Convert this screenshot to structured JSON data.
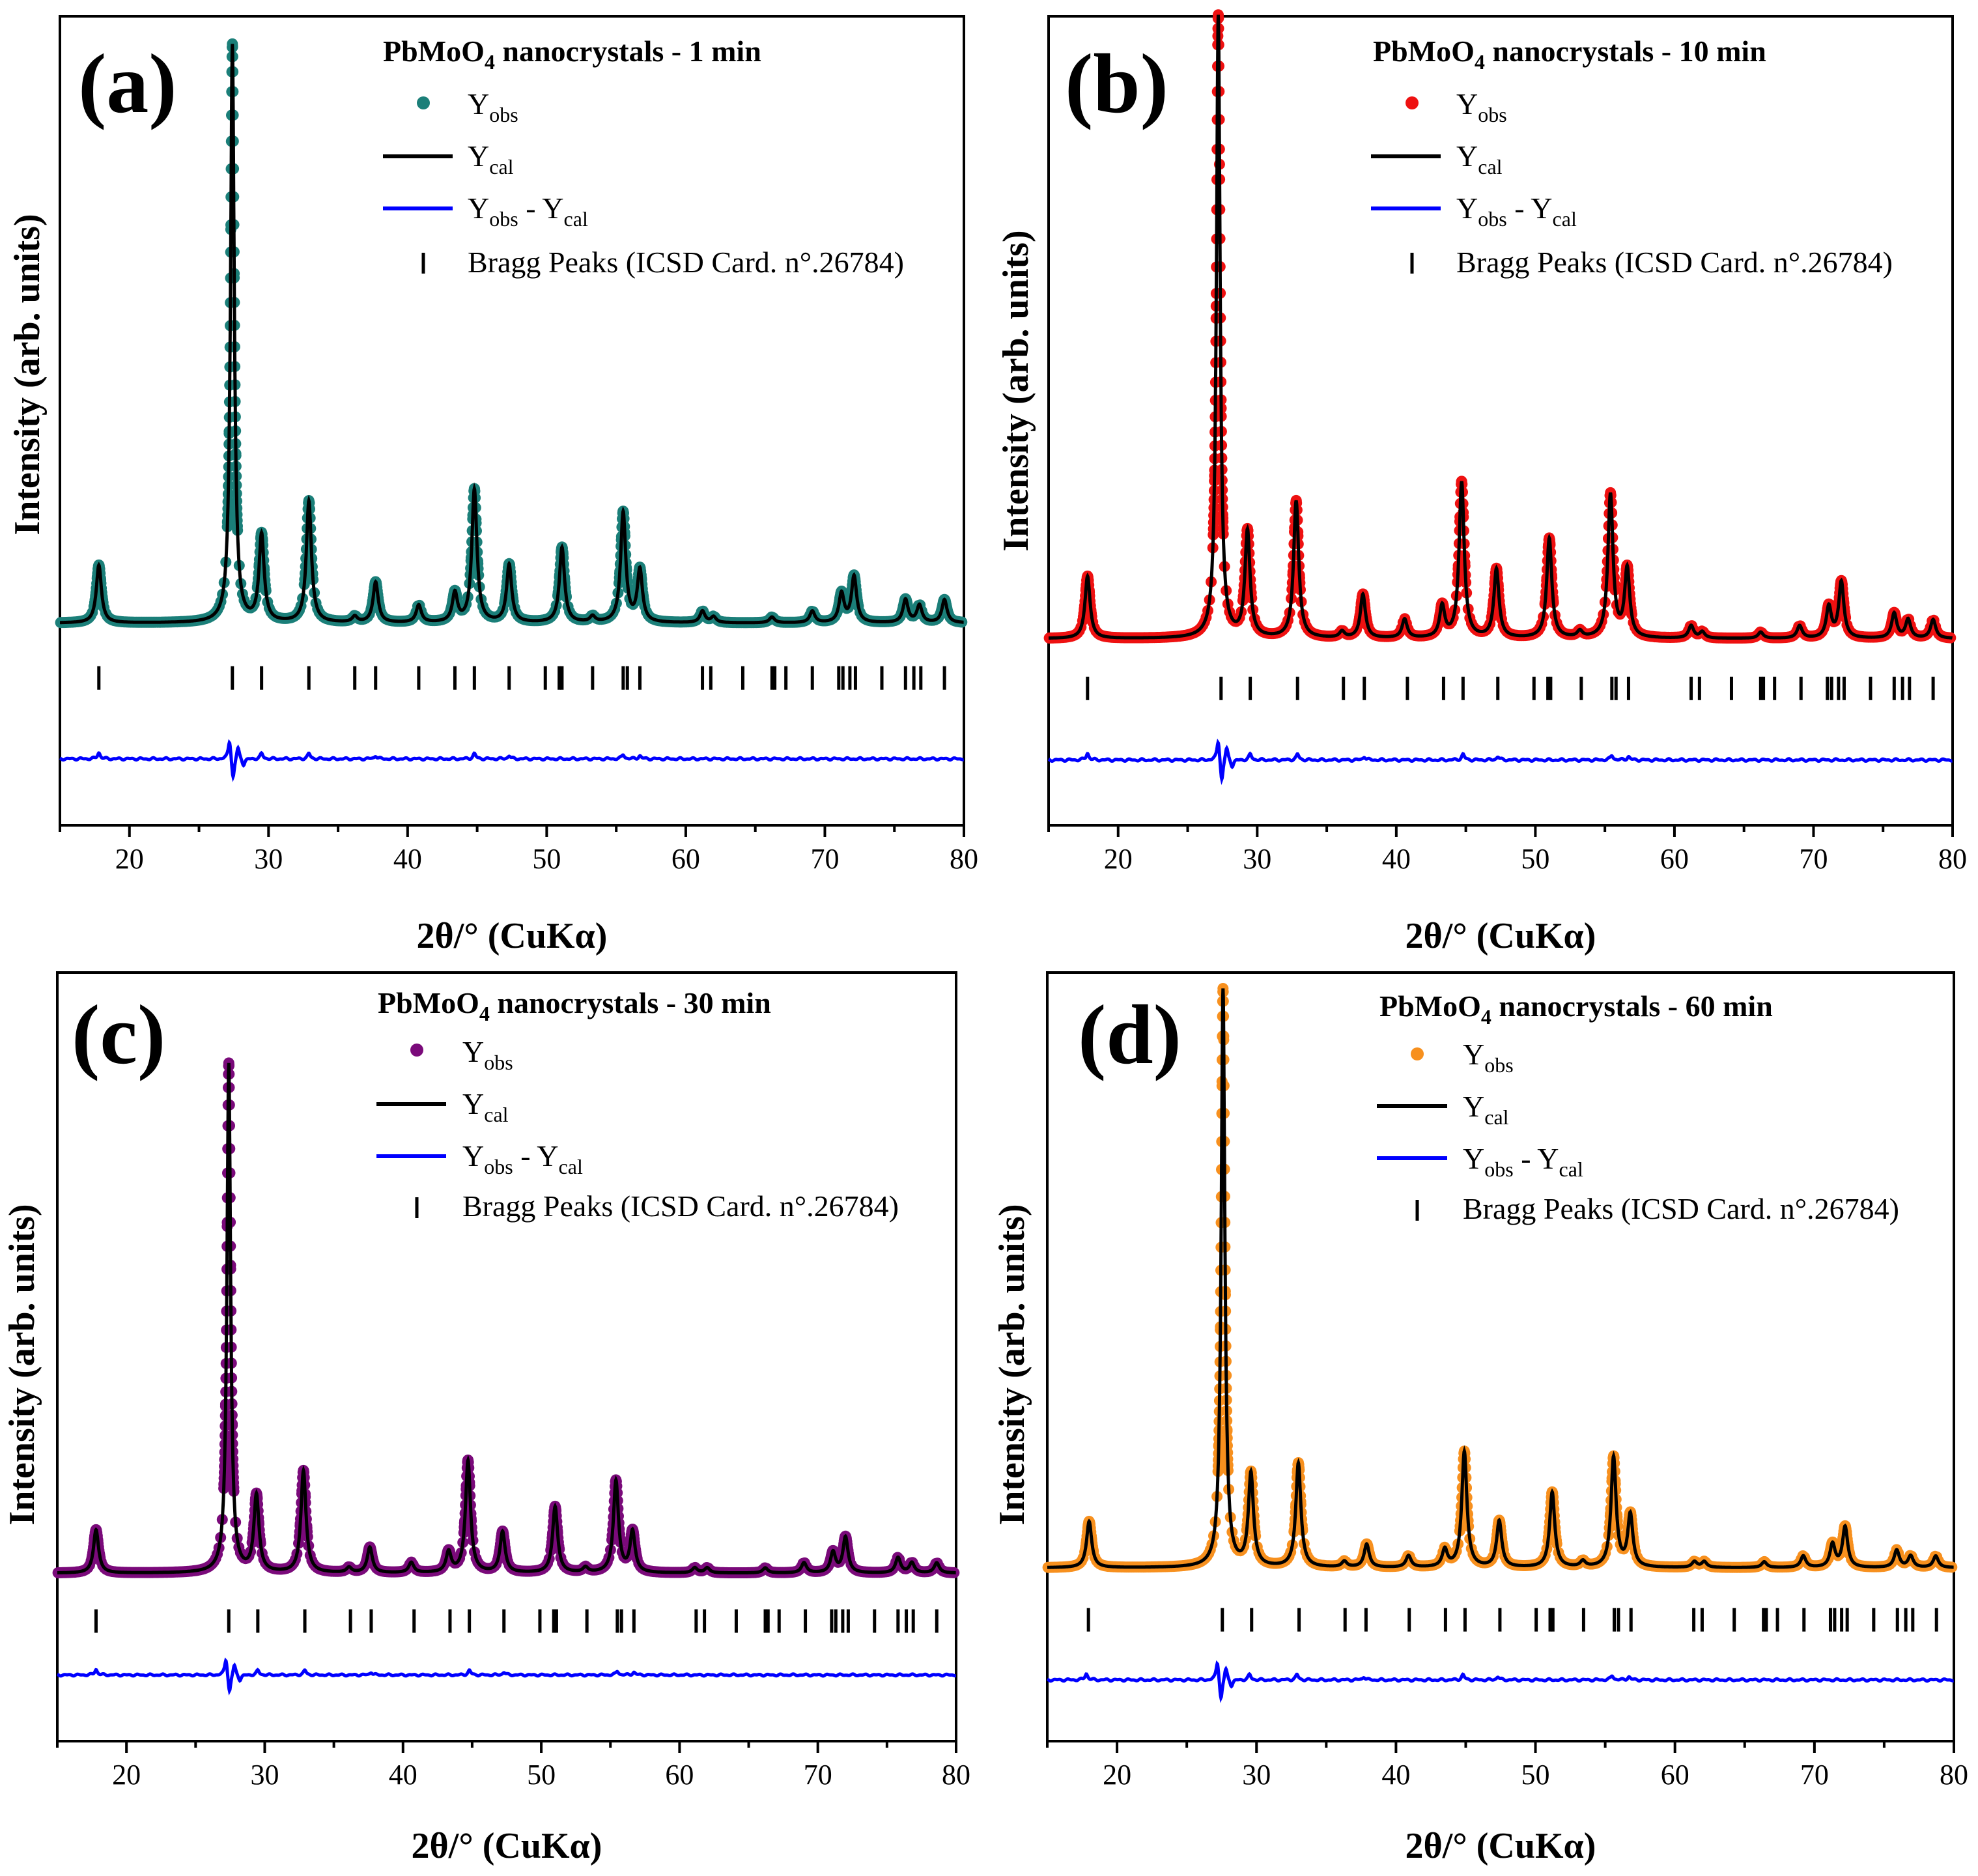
{
  "figure": {
    "bragg_positions": [
      17.8,
      27.4,
      29.5,
      32.9,
      36.2,
      37.7,
      40.8,
      43.4,
      44.8,
      47.3,
      49.9,
      50.9,
      51.1,
      53.3,
      55.5,
      55.8,
      56.7,
      61.2,
      61.8,
      64.1,
      66.2,
      66.4,
      67.2,
      69.1,
      71.0,
      71.3,
      71.8,
      72.2,
      74.1,
      75.8,
      76.4,
      76.9,
      78.6
    ],
    "diff_features": [
      [
        17.8,
        6
      ],
      [
        27.2,
        20
      ],
      [
        27.45,
        -22
      ],
      [
        27.8,
        12
      ],
      [
        28.2,
        -6
      ],
      [
        29.5,
        5
      ],
      [
        32.9,
        5
      ],
      [
        37.7,
        3
      ],
      [
        44.8,
        5
      ],
      [
        47.3,
        3
      ],
      [
        55.5,
        4
      ],
      [
        56.7,
        3
      ]
    ],
    "peak_widths": {
      "27.4": 0.16
    },
    "peaks_default_width": 0.22
  },
  "panels": [
    {
      "id": "a",
      "letter": "(a)",
      "legend_title_prefix": "PbMoO",
      "legend_title_sub": "4",
      "legend_title_suffix": " nanocrystals - 1 min",
      "legend_obs_main": "Y",
      "legend_obs_sub": "obs",
      "legend_cal_main": "Y",
      "legend_cal_sub": "cal",
      "legend_diff_main1": "Y",
      "legend_diff_sub1": "obs",
      "legend_diff_mid": " - Y",
      "legend_diff_sub2": "cal",
      "legend_bragg": "Bragg Peaks (ICSD Card. n°.26784)",
      "xlabel": "2θ/° (CuKα)",
      "ylabel": "Intensity (arb. units)",
      "x_ticks": [
        "20",
        "30",
        "40",
        "50",
        "60",
        "70",
        "80"
      ],
      "colors": {
        "obs": "#1b7f79",
        "cal": "#000000",
        "diff": "#0000ff"
      },
      "chart_data": {
        "type": "scatter",
        "title": "PbMoO4 nanocrystals - 1 min",
        "xlabel": "2θ/° (CuKα)",
        "ylabel": "Intensity (arb. units)",
        "xlim": [
          15,
          80
        ],
        "ylim": [
          -0.35,
          1.05
        ],
        "baseline": 0.0,
        "peaks": [
          [
            17.8,
            0.1
          ],
          [
            27.4,
            1.0
          ],
          [
            29.5,
            0.15
          ],
          [
            32.9,
            0.21
          ],
          [
            36.2,
            0.01
          ],
          [
            37.7,
            0.07
          ],
          [
            40.8,
            0.03
          ],
          [
            43.4,
            0.05
          ],
          [
            44.8,
            0.23
          ],
          [
            47.3,
            0.1
          ],
          [
            51.1,
            0.13
          ],
          [
            53.3,
            0.01
          ],
          [
            55.5,
            0.19
          ],
          [
            56.7,
            0.09
          ],
          [
            61.2,
            0.02
          ],
          [
            62.0,
            0.01
          ],
          [
            66.2,
            0.01
          ],
          [
            69.1,
            0.02
          ],
          [
            71.2,
            0.05
          ],
          [
            72.1,
            0.08
          ],
          [
            75.8,
            0.04
          ],
          [
            76.8,
            0.03
          ],
          [
            78.6,
            0.04
          ]
        ],
        "bragg_y": -0.095,
        "diff_offset": -0.235,
        "series": [
          "Yobs",
          "Ycal",
          "Yobs - Ycal",
          "Bragg Peaks (ICSD Card. n°.26784)"
        ]
      }
    },
    {
      "id": "b",
      "letter": "(b)",
      "legend_title_prefix": "PbMoO",
      "legend_title_sub": "4",
      "legend_title_suffix": " nanocrystals - 10 min",
      "legend_obs_main": "Y",
      "legend_obs_sub": "obs",
      "legend_cal_main": "Y",
      "legend_cal_sub": "cal",
      "legend_diff_main1": "Y",
      "legend_diff_sub1": "obs",
      "legend_diff_mid": " - Y",
      "legend_diff_sub2": "cal",
      "legend_bragg": "Bragg Peaks (ICSD Card. n°.26784)",
      "xlabel": "2θ/° (CuKα)",
      "ylabel": "Intensity (arb. units)",
      "x_ticks": [
        "20",
        "30",
        "40",
        "50",
        "60",
        "70",
        "80"
      ],
      "colors": {
        "obs": "#ee1111",
        "cal": "#000000",
        "diff": "#0000ff"
      },
      "chart_data": {
        "type": "scatter",
        "title": "PbMoO4 nanocrystals - 10 min",
        "xlabel": "2θ/° (CuKα)",
        "ylabel": "Intensity (arb. units)",
        "xlim": [
          15,
          80
        ],
        "ylim": [
          -0.3,
          1.0
        ],
        "baseline": 0.0,
        "peaks": [
          [
            17.8,
            0.1
          ],
          [
            27.2,
            1.0
          ],
          [
            29.3,
            0.17
          ],
          [
            32.8,
            0.22
          ],
          [
            36.1,
            0.01
          ],
          [
            37.6,
            0.07
          ],
          [
            40.6,
            0.03
          ],
          [
            43.3,
            0.05
          ],
          [
            44.7,
            0.25
          ],
          [
            47.2,
            0.11
          ],
          [
            51.0,
            0.16
          ],
          [
            53.2,
            0.01
          ],
          [
            55.4,
            0.23
          ],
          [
            56.6,
            0.11
          ],
          [
            61.2,
            0.02
          ],
          [
            62.0,
            0.01
          ],
          [
            66.2,
            0.01
          ],
          [
            69.0,
            0.02
          ],
          [
            71.1,
            0.05
          ],
          [
            72.0,
            0.09
          ],
          [
            75.8,
            0.04
          ],
          [
            76.8,
            0.03
          ],
          [
            78.6,
            0.03
          ]
        ],
        "bragg_y": -0.08,
        "diff_offset": -0.195,
        "series": [
          "Yobs",
          "Ycal",
          "Yobs - Ycal",
          "Bragg Peaks (ICSD Card. n°.26784)"
        ]
      }
    },
    {
      "id": "c",
      "letter": "(c)",
      "legend_title_prefix": "PbMoO",
      "legend_title_sub": "4",
      "legend_title_suffix": " nanocrystals - 30 min",
      "legend_obs_main": "Y",
      "legend_obs_sub": "obs",
      "legend_cal_main": "Y",
      "legend_cal_sub": "cal",
      "legend_diff_main1": "Y",
      "legend_diff_sub1": "obs",
      "legend_diff_mid": " - Y",
      "legend_diff_sub2": "cal",
      "legend_bragg": "Bragg Peaks (ICSD Card. n°.26784)",
      "xlabel": "2θ/° (CuKα)",
      "ylabel": "Intensity (arb. units)",
      "x_ticks": [
        "20",
        "30",
        "40",
        "50",
        "60",
        "70",
        "80"
      ],
      "colors": {
        "obs": "#7a0a7a",
        "cal": "#000000",
        "diff": "#0000ff"
      },
      "chart_data": {
        "type": "scatter",
        "title": "PbMoO4 nanocrystals - 30 min",
        "xlabel": "2θ/° (CuKα)",
        "ylabel": "Intensity (arb. units)",
        "xlim": [
          15,
          80
        ],
        "ylim": [
          -0.33,
          1.18
        ],
        "baseline": 0.0,
        "peaks": [
          [
            17.8,
            0.085
          ],
          [
            27.4,
            1.0
          ],
          [
            29.4,
            0.15
          ],
          [
            32.8,
            0.2
          ],
          [
            36.1,
            0.01
          ],
          [
            37.6,
            0.05
          ],
          [
            40.6,
            0.02
          ],
          [
            43.3,
            0.04
          ],
          [
            44.7,
            0.22
          ],
          [
            47.2,
            0.08
          ],
          [
            51.0,
            0.13
          ],
          [
            53.2,
            0.01
          ],
          [
            55.4,
            0.18
          ],
          [
            56.6,
            0.08
          ],
          [
            61.1,
            0.01
          ],
          [
            62.0,
            0.01
          ],
          [
            66.2,
            0.01
          ],
          [
            69.0,
            0.02
          ],
          [
            71.1,
            0.04
          ],
          [
            72.0,
            0.07
          ],
          [
            75.8,
            0.03
          ],
          [
            76.8,
            0.02
          ],
          [
            78.6,
            0.02
          ]
        ],
        "bragg_y": -0.094,
        "diff_offset": -0.2,
        "series": [
          "Yobs",
          "Ycal",
          "Yobs - Ycal",
          "Bragg Peaks (ICSD Card. n°.26784)"
        ]
      }
    },
    {
      "id": "d",
      "letter": "(d)",
      "legend_title_prefix": "PbMoO",
      "legend_title_sub": "4",
      "legend_title_suffix": " nanocrystals - 60 min",
      "legend_obs_main": "Y",
      "legend_obs_sub": "obs",
      "legend_cal_main": "Y",
      "legend_cal_sub": "cal",
      "legend_diff_main1": "Y",
      "legend_diff_sub1": "obs",
      "legend_diff_mid": " - Y",
      "legend_diff_sub2": "cal",
      "legend_bragg": "Bragg Peaks (ICSD Card. n°.26784)",
      "xlabel": "2θ/° (CuKα)",
      "ylabel": "Intensity (arb. units)",
      "x_ticks": [
        "20",
        "30",
        "40",
        "50",
        "60",
        "70",
        "80"
      ],
      "colors": {
        "obs": "#f7901e",
        "cal": "#000000",
        "diff": "#0000ff"
      },
      "chart_data": {
        "type": "scatter",
        "title": "PbMoO4 nanocrystals - 60 min",
        "xlabel": "2θ/° (CuKα)",
        "ylabel": "Intensity (arb. units)",
        "xlim": [
          15,
          80
        ],
        "ylim": [
          -0.3,
          1.03
        ],
        "baseline": 0.0,
        "peaks": [
          [
            18.0,
            0.08
          ],
          [
            27.6,
            1.0
          ],
          [
            29.6,
            0.16
          ],
          [
            33.0,
            0.18
          ],
          [
            36.3,
            0.01
          ],
          [
            37.9,
            0.04
          ],
          [
            40.9,
            0.02
          ],
          [
            43.5,
            0.03
          ],
          [
            44.9,
            0.2
          ],
          [
            47.4,
            0.08
          ],
          [
            51.2,
            0.13
          ],
          [
            53.4,
            0.01
          ],
          [
            55.6,
            0.19
          ],
          [
            56.8,
            0.09
          ],
          [
            61.4,
            0.01
          ],
          [
            62.1,
            0.01
          ],
          [
            66.4,
            0.01
          ],
          [
            69.2,
            0.02
          ],
          [
            71.3,
            0.04
          ],
          [
            72.2,
            0.07
          ],
          [
            75.9,
            0.03
          ],
          [
            76.9,
            0.02
          ],
          [
            78.7,
            0.02
          ]
        ],
        "bragg_y": -0.09,
        "diff_offset": -0.194,
        "series": [
          "Yobs",
          "Ycal",
          "Yobs - Ycal",
          "Bragg Peaks (ICSD Card. n°.26784)"
        ]
      }
    }
  ]
}
